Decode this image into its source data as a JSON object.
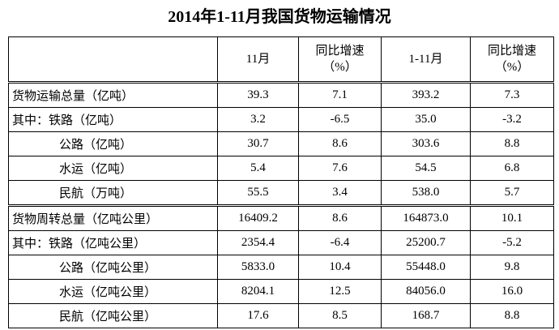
{
  "title": "2014年1-11月我国货物运输情况",
  "header": [
    [
      "11月"
    ],
    [
      "同比增速",
      "（%）"
    ],
    [
      "1-11月"
    ],
    [
      "同比增速",
      "（%）"
    ]
  ],
  "rows": [
    {
      "label": "货物运输总量（亿吨）",
      "cells": [
        "39.3",
        "7.1",
        "393.2",
        "7.3"
      ]
    },
    {
      "label": "其中：铁路（亿吨）",
      "cells": [
        "3.2",
        "-6.5",
        "35.0",
        "-3.2"
      ]
    },
    {
      "label": "公路（亿吨）",
      "cells": [
        "30.7",
        "8.6",
        "303.6",
        "8.8"
      ]
    },
    {
      "label": "水运（亿吨）",
      "cells": [
        "5.4",
        "7.6",
        "54.5",
        "6.8"
      ]
    },
    {
      "label": "民航（万吨）",
      "cells": [
        "55.5",
        "3.4",
        "538.0",
        "5.7"
      ]
    },
    {
      "label": "货物周转总量（亿吨公里）",
      "cells": [
        "16409.2",
        "8.6",
        "164873.0",
        "10.1"
      ]
    },
    {
      "label": "其中：铁路（亿吨公里）",
      "cells": [
        "2354.4",
        "-6.4",
        "25200.7",
        "-5.2"
      ]
    },
    {
      "label": "公路（亿吨公里）",
      "cells": [
        "5833.0",
        "10.4",
        "55448.0",
        "9.8"
      ]
    },
    {
      "label": "水运（亿吨公里）",
      "cells": [
        "8204.1",
        "12.5",
        "84056.0",
        "16.0"
      ]
    },
    {
      "label": "民航（亿吨公里）",
      "cells": [
        "17.6",
        "8.5",
        "168.7",
        "8.8"
      ]
    }
  ]
}
